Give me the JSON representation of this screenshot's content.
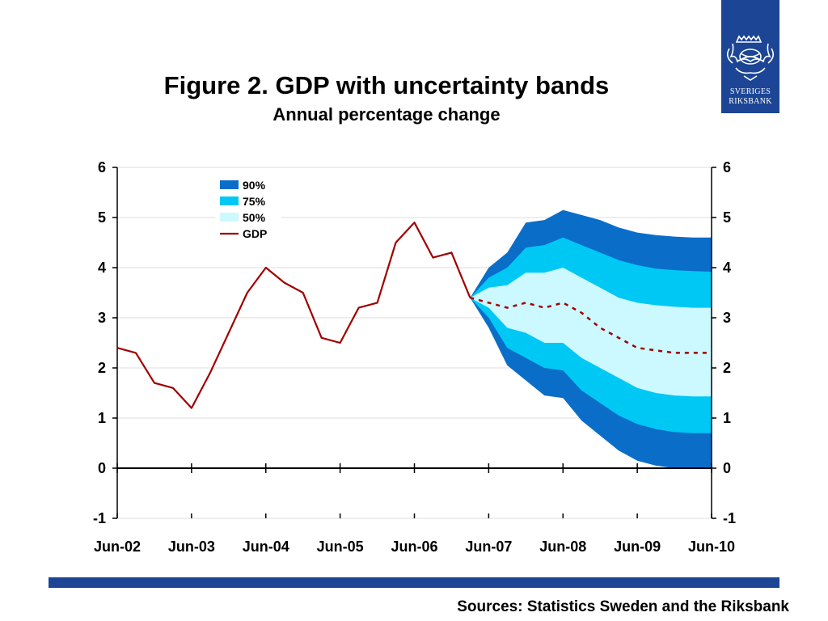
{
  "header": {
    "title": "Figure 2. GDP with uncertainty bands",
    "subtitle": "Annual percentage change"
  },
  "logo": {
    "line1": "SVERIGES",
    "line2": "RIKSBANK",
    "background": "#1c4595"
  },
  "footer": {
    "sources": "Sources: Statistics Sweden and the Riksbank",
    "bar_color": "#1c4595"
  },
  "chart_data": {
    "type": "area",
    "title": "Figure 2. GDP with uncertainty bands",
    "subtitle": "Annual percentage change",
    "xlabel": "",
    "ylabel": "",
    "x_domain": [
      "Jun-02",
      "Jun-10"
    ],
    "x_tick_labels": [
      "Jun-02",
      "Jun-03",
      "Jun-04",
      "Jun-05",
      "Jun-06",
      "Jun-07",
      "Jun-08",
      "Jun-09",
      "Jun-10"
    ],
    "ylim": [
      -1,
      6
    ],
    "y_tick_labels": [
      "-1",
      "0",
      "1",
      "2",
      "3",
      "4",
      "5",
      "6"
    ],
    "dual_y_axis": true,
    "grid": "horizontal",
    "legend_position": "top-left",
    "legend": [
      "90%",
      "75%",
      "50%",
      "GDP"
    ],
    "colors": {
      "band_90": "#0a6ec9",
      "band_75": "#00c8f5",
      "band_50": "#ccf8ff",
      "gdp": "#a00000"
    },
    "gdp_outcome": {
      "name": "GDP",
      "x": [
        "Jun-02",
        "Sep-02",
        "Dec-02",
        "Mar-03",
        "Jun-03",
        "Sep-03",
        "Dec-03",
        "Mar-04",
        "Jun-04",
        "Sep-04",
        "Dec-04",
        "Mar-05",
        "Jun-05",
        "Sep-05",
        "Dec-05",
        "Mar-06",
        "Jun-06",
        "Sep-06",
        "Dec-06",
        "Mar-07"
      ],
      "values": [
        2.4,
        2.3,
        1.7,
        1.6,
        1.2,
        1.9,
        2.7,
        3.5,
        4.0,
        3.7,
        3.5,
        2.6,
        2.5,
        3.2,
        3.3,
        4.5,
        4.9,
        4.2,
        4.3,
        3.4
      ]
    },
    "gdp_forecast": {
      "name": "GDP",
      "style": "dashed",
      "x": [
        "Mar-07",
        "Jun-07",
        "Sep-07",
        "Dec-07",
        "Mar-08",
        "Jun-08",
        "Sep-08",
        "Dec-08",
        "Mar-09",
        "Jun-09",
        "Sep-09",
        "Dec-09",
        "Mar-10",
        "Jun-10"
      ],
      "values": [
        3.4,
        3.3,
        3.2,
        3.3,
        3.2,
        3.3,
        3.1,
        2.8,
        2.6,
        2.4,
        2.35,
        2.3,
        2.3,
        2.3
      ]
    },
    "bands": {
      "x": [
        "Mar-07",
        "Jun-07",
        "Sep-07",
        "Dec-07",
        "Mar-08",
        "Jun-08",
        "Sep-08",
        "Dec-08",
        "Mar-09",
        "Jun-09",
        "Sep-09",
        "Dec-09",
        "Mar-10",
        "Jun-10"
      ],
      "upper_90": [
        3.4,
        4.0,
        4.3,
        4.9,
        4.95,
        5.15,
        5.05,
        4.95,
        4.8,
        4.7,
        4.65,
        4.62,
        4.6,
        4.6
      ],
      "upper_75": [
        3.4,
        3.8,
        4.0,
        4.4,
        4.45,
        4.6,
        4.45,
        4.3,
        4.15,
        4.05,
        3.98,
        3.95,
        3.93,
        3.92
      ],
      "upper_50": [
        3.4,
        3.6,
        3.65,
        3.9,
        3.9,
        4.0,
        3.8,
        3.6,
        3.4,
        3.3,
        3.25,
        3.22,
        3.2,
        3.2
      ],
      "lower_50": [
        3.4,
        3.2,
        2.8,
        2.7,
        2.5,
        2.5,
        2.2,
        2.0,
        1.8,
        1.6,
        1.5,
        1.45,
        1.43,
        1.43
      ],
      "lower_75": [
        3.4,
        3.0,
        2.4,
        2.2,
        2.0,
        1.95,
        1.55,
        1.3,
        1.05,
        0.88,
        0.78,
        0.72,
        0.7,
        0.7
      ],
      "lower_90": [
        3.4,
        2.8,
        2.05,
        1.75,
        1.45,
        1.4,
        0.95,
        0.65,
        0.35,
        0.15,
        0.05,
        0.0,
        0.0,
        0.0
      ]
    }
  }
}
